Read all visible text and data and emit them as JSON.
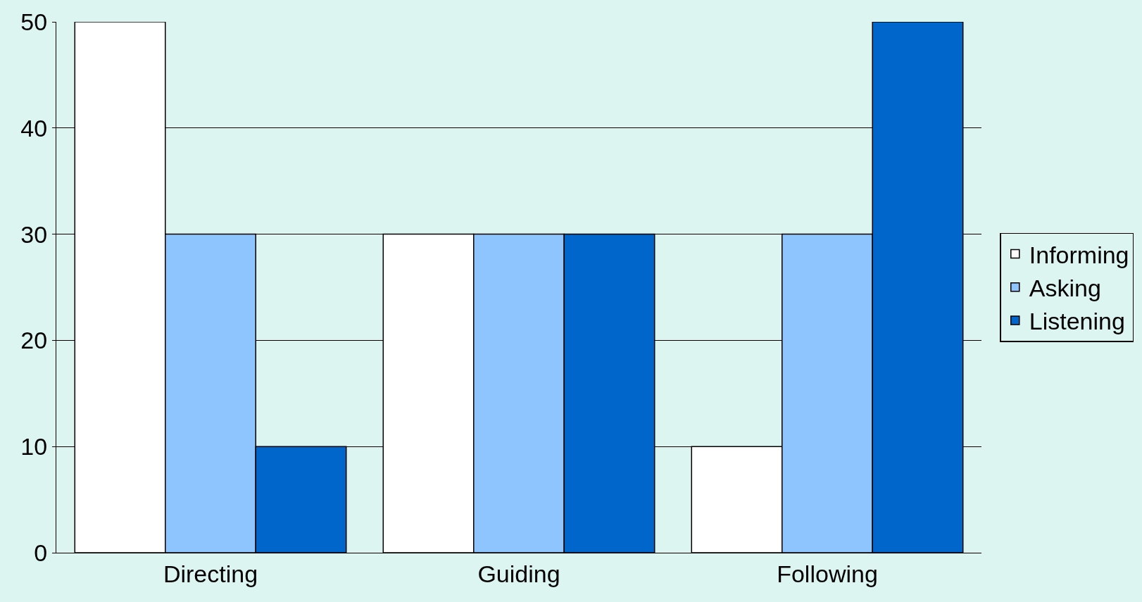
{
  "chart_data": {
    "type": "bar",
    "categories": [
      "Directing",
      "Guiding",
      "Following"
    ],
    "series": [
      {
        "name": "Informing",
        "color": "#ffffff",
        "values": [
          50,
          30,
          10
        ]
      },
      {
        "name": "Asking",
        "color": "#8fc5ff",
        "values": [
          30,
          30,
          30
        ]
      },
      {
        "name": "Listening",
        "color": "#0066cc",
        "values": [
          10,
          30,
          50
        ]
      }
    ],
    "ylim": [
      0,
      50
    ],
    "yticks": [
      0,
      10,
      20,
      30,
      40,
      50
    ],
    "grid": "y",
    "legend": "right"
  }
}
